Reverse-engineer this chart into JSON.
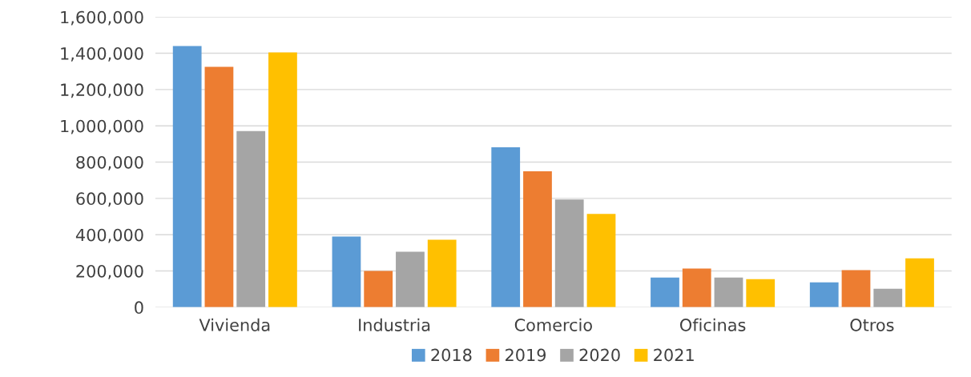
{
  "chart_data": {
    "type": "bar",
    "categories": [
      "Vivienda",
      "Industria",
      "Comercio",
      "Oficinas",
      "Otros"
    ],
    "series": [
      {
        "name": "2018",
        "color": "#5b9bd5",
        "values": [
          1440000,
          390000,
          882000,
          164000,
          137000
        ]
      },
      {
        "name": "2019",
        "color": "#ed7d31",
        "values": [
          1325000,
          200000,
          749000,
          213000,
          204000
        ]
      },
      {
        "name": "2020",
        "color": "#a5a5a5",
        "values": [
          971000,
          306000,
          594000,
          164000,
          102000
        ]
      },
      {
        "name": "2021",
        "color": "#ffc000",
        "values": [
          1405000,
          372000,
          514000,
          155000,
          270000
        ]
      }
    ],
    "ylim": [
      0,
      1600000
    ],
    "yticks": [
      {
        "value": 0,
        "label": "0"
      },
      {
        "value": 200000,
        "label": "200,000"
      },
      {
        "value": 400000,
        "label": "400,000"
      },
      {
        "value": 600000,
        "label": "600,000"
      },
      {
        "value": 800000,
        "label": "800,000"
      },
      {
        "value": 1000000,
        "label": "1,000,000"
      },
      {
        "value": 1200000,
        "label": "1,200,000"
      },
      {
        "value": 1400000,
        "label": "1,400,000"
      },
      {
        "value": 1600000,
        "label": "1,600,000"
      }
    ],
    "grid": "y",
    "legend": "bottom"
  }
}
